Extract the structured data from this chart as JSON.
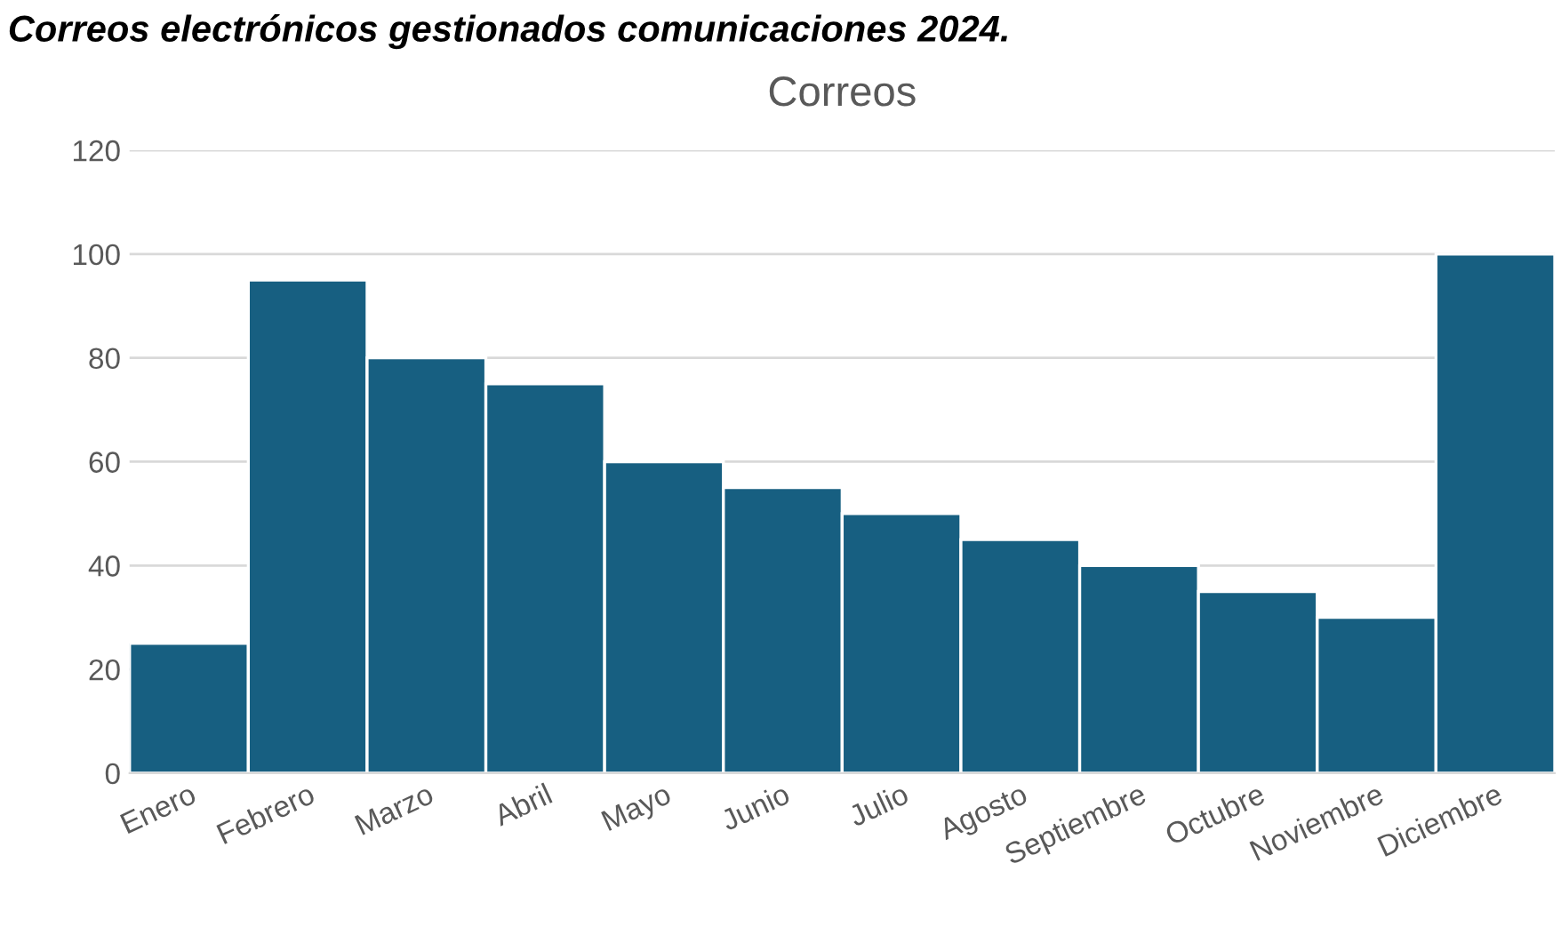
{
  "chart_data": {
    "type": "bar",
    "title": "Correos",
    "annotations": [
      "Correos electrónicos gestionados comunicaciones 2024."
    ],
    "categories": [
      "Enero",
      "Febrero",
      "Marzo",
      "Abril",
      "Mayo",
      "Junio",
      "Julio",
      "Agosto",
      "Septiembre",
      "Octubre",
      "Noviembre",
      "Diciembre"
    ],
    "values": [
      25,
      95,
      80,
      75,
      60,
      55,
      50,
      45,
      40,
      35,
      30,
      100
    ],
    "color": "#175f81",
    "ylim": [
      0,
      120
    ],
    "yticks": [
      0,
      20,
      40,
      60,
      80,
      100,
      120
    ],
    "grid": "y",
    "legend": false
  }
}
